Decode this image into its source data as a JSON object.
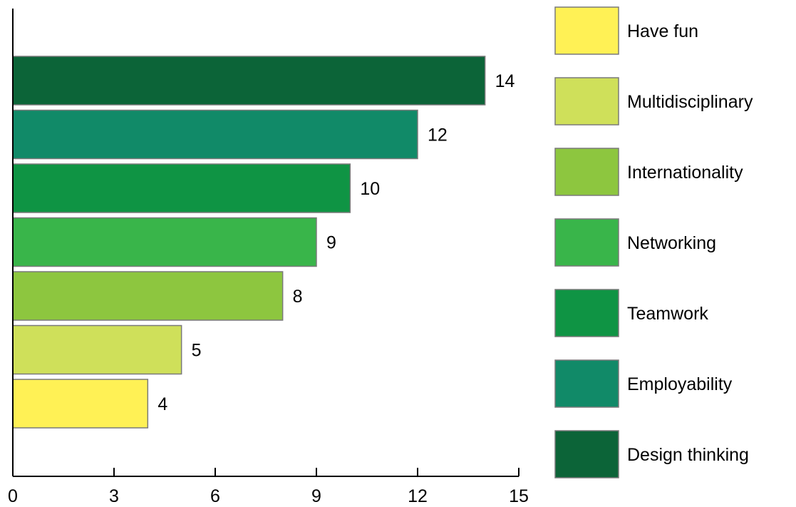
{
  "chart_data": {
    "type": "bar",
    "orientation": "horizontal",
    "categories": [
      "Design thinking",
      "Employability",
      "Teamwork",
      "Networking",
      "Internationality",
      "Multidisciplinary",
      "Have fun"
    ],
    "values": [
      14,
      12,
      10,
      9,
      8,
      5,
      4
    ],
    "colors": [
      "#0c6438",
      "#118a68",
      "#0f9444",
      "#39b54a",
      "#8dc63f",
      "#cfe05a",
      "#fff155"
    ],
    "xlim": [
      0,
      15
    ],
    "xticks": [
      0,
      3,
      6,
      9,
      12,
      15
    ],
    "title": "",
    "xlabel": "",
    "ylabel": "",
    "data_labels": true,
    "grid": false,
    "legend": {
      "position": "right",
      "order": [
        "Have fun",
        "Multidisciplinary",
        "Internationality",
        "Networking",
        "Teamwork",
        "Employability",
        "Design thinking"
      ]
    }
  }
}
